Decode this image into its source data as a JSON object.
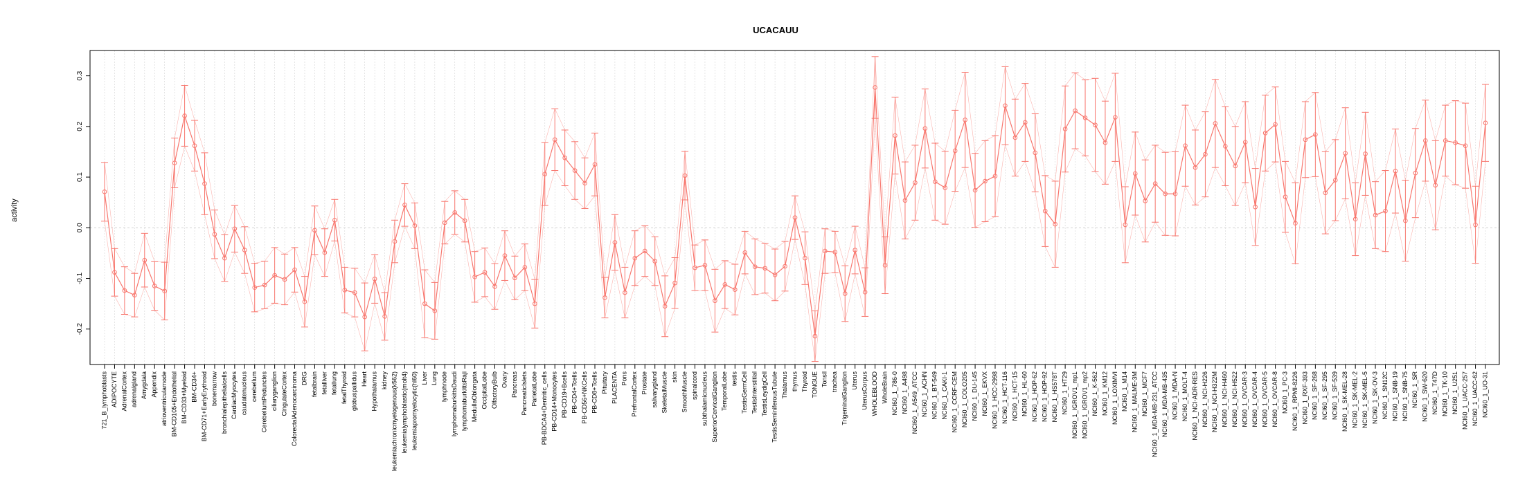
{
  "chart_data": {
    "type": "line",
    "title": "UCACAUU",
    "xlabel": "",
    "ylabel": "activity",
    "ylim": [
      -0.27,
      0.35
    ],
    "yticks": [
      -0.2,
      -0.1,
      0.0,
      0.1,
      0.2,
      0.3
    ],
    "ytick_labels": [
      "-0.2",
      "-0.1",
      "0.0",
      "0.1",
      "0.2",
      "0.3"
    ],
    "reference_line": 0,
    "grid": true,
    "error_bars": true,
    "colors": {
      "series": "#F8766D",
      "grid": "#D3D3D3",
      "axis": "#000000"
    },
    "categories": [
      "721_B_lymphoblasts",
      "ADIPOCYTE",
      "AdrenalCortex",
      "adrenalgland",
      "Amygdala",
      "Appendix",
      "atrioventricularnode",
      "BM-CD105+Endothelial",
      "BM-CD33+Myeloid",
      "BM-CD34+",
      "BM-CD71+EarlyErythroid",
      "bonemarrow",
      "bronchialepithelialcells",
      "CardiacMyocytes",
      "caudatenucleus",
      "cerebellum",
      "CerebellumPeduncles",
      "ciliaryganglion",
      "CingulateCortex",
      "ColorectalAdenocarcinoma",
      "DRG",
      "fetalbrain",
      "fetalliver",
      "fetallung",
      "fetalThyroid",
      "globuspallidus",
      "Heart",
      "Hypothalamus",
      "kidney",
      "leukemiachronicmyelogenous(k562)",
      "leukemialymphoblastic(molt4)",
      "leukemiapromyelocytic(hl60)",
      "Liver",
      "Lung",
      "lymphnode",
      "lymphomaburkittsDaudi",
      "lymphomaburkittsRaji",
      "MedullaOblongata",
      "OccipitalLobe",
      "OlfactoryBulb",
      "Ovary",
      "Pancreas",
      "PancreaticIslets",
      "ParietalLobe",
      "PB-BDCA4+Dentritic_cells",
      "PB-CD14+Monocytes",
      "PB-CD19+Bcells",
      "PB-CD4+Tcells",
      "PB-CD56+NKCells",
      "PB-CD8+Tcells",
      "Pituitary",
      "PLACENTA",
      "Pons",
      "PrefrontalCortex",
      "Prostate",
      "salivarygland",
      "SkeletalMuscle",
      "skin",
      "SmoothMuscle",
      "spinalcord",
      "subthalamicnucleus",
      "SuperiorCervicalGanglion",
      "TemporalLobe",
      "testis",
      "TestisGermCell",
      "TestisInterstitial",
      "TestisLeydigCell",
      "TestisSeminiferousTubule",
      "Thalamus",
      "thymus",
      "Thyroid",
      "TONGUE",
      "Tonsil",
      "trachea",
      "TrigeminalGanglion",
      "Uterus",
      "UterusCorpus",
      "WHOLEBLOOD",
      "WholeBrain",
      "NCI60_1_786-0",
      "NCI60_1_A498",
      "NCI60_1_A549_ATCC",
      "NCI60_1_ACHN",
      "NCI60_1_BT-549",
      "NCI60_1_CAKI-1",
      "NCI60_1_CCRF-CEM",
      "NCI60_1_COLO205",
      "NCI60_1_DU-145",
      "NCI60_1_EKVX",
      "NCI60_1_HCC-2998",
      "NCI60_1_HCT-116",
      "NCI60_1_HCT-15",
      "NCI60_1_HL-60",
      "NCI60_1_HOP-62",
      "NCI60_1_HOP-92",
      "NCI60_1_HS578T",
      "NCI60_1_HT29",
      "NCI60_1_IGROV1_mp1",
      "NCI60_1_IGROV1_mp2",
      "NCI60_1_K-562",
      "NCI60_1_KM12",
      "NCI60_1_LOXIMVI",
      "NCI60_1_M14",
      "NCI60_1_MALME-3M",
      "NCI60_1_MCF7",
      "NCI60_1_MDA-MB-231_ATCC",
      "NCI60_1_MDA-MB-435",
      "NCI60_1_MDA-N",
      "NCI60_1_MOLT-4",
      "NCI60_1_NCI-ADR-RES",
      "NCI60_1_NCI-H226",
      "NCI60_1_NCI-H322M",
      "NCI60_1_NCI-H460",
      "NCI60_1_NCI-H522",
      "NCI60_1_OVCAR-3",
      "NCI60_1_OVCAR-4",
      "NCI60_1_OVCAR-5",
      "NCI60_1_OVCAR-8",
      "NCI60_1_PC-3",
      "NCI60_1_RPMI-8226",
      "NCI60_1_RXF-393",
      "NCI60_1_SF-268",
      "NCI60_1_SF-295",
      "NCI60_1_SF-539",
      "NCI60_1_SK-MEL-28",
      "NCI60_1_SK-MEL-2",
      "NCI60_1_SK-MEL-5",
      "NCI60_1_SK-OV-3",
      "NCI60_1_SN12C",
      "NCI60_1_SNB-19",
      "NCI60_1_SNB-75",
      "NCI60_1_SR",
      "NCI60_1_SW-620",
      "NCI60_1_T47D",
      "NCI60_1_TK-10",
      "NCI60_1_U251",
      "NCI60_1_UACC-257",
      "NCI60_1_UACC-62",
      "NCI60_1_UO-31"
    ],
    "values": [
      0.071,
      -0.088,
      -0.124,
      -0.133,
      -0.064,
      -0.115,
      -0.125,
      0.128,
      0.221,
      0.162,
      0.087,
      -0.013,
      -0.06,
      -0.002,
      -0.044,
      -0.118,
      -0.113,
      -0.094,
      -0.102,
      -0.083,
      -0.146,
      -0.005,
      -0.049,
      0.015,
      -0.123,
      -0.128,
      -0.176,
      -0.101,
      -0.175,
      -0.027,
      0.045,
      0.004,
      -0.15,
      -0.164,
      0.01,
      0.03,
      0.014,
      -0.097,
      -0.088,
      -0.116,
      -0.055,
      -0.099,
      -0.078,
      -0.15,
      0.106,
      0.174,
      0.138,
      0.113,
      0.088,
      0.125,
      -0.138,
      -0.029,
      -0.128,
      -0.06,
      -0.046,
      -0.066,
      -0.155,
      -0.109,
      0.103,
      -0.079,
      -0.074,
      -0.144,
      -0.112,
      -0.122,
      -0.049,
      -0.077,
      -0.08,
      -0.093,
      -0.076,
      0.02,
      -0.06,
      -0.214,
      -0.046,
      -0.048,
      -0.13,
      -0.044,
      -0.127,
      0.277,
      -0.074,
      0.182,
      0.054,
      0.089,
      0.196,
      0.091,
      0.079,
      0.152,
      0.213,
      0.074,
      0.092,
      0.102,
      0.241,
      0.178,
      0.208,
      0.148,
      0.033,
      0.007,
      0.195,
      0.231,
      0.217,
      0.203,
      0.168,
      0.218,
      0.006,
      0.107,
      0.053,
      0.087,
      0.067,
      0.067,
      0.162,
      0.119,
      0.145,
      0.206,
      0.161,
      0.122,
      0.169,
      0.041,
      0.187,
      0.204,
      0.061,
      0.009,
      0.174,
      0.184,
      0.069,
      0.094,
      0.147,
      0.017,
      0.146,
      0.025,
      0.033,
      0.112,
      0.014,
      0.108,
      0.172,
      0.084,
      0.172,
      0.168,
      0.162,
      0.006,
      0.207
    ],
    "errors": [
      0.058,
      0.047,
      0.047,
      0.043,
      0.053,
      0.048,
      0.057,
      0.049,
      0.06,
      0.05,
      0.061,
      0.048,
      0.046,
      0.046,
      0.046,
      0.048,
      0.047,
      0.055,
      0.05,
      0.044,
      0.05,
      0.048,
      0.047,
      0.041,
      0.045,
      0.048,
      0.067,
      0.048,
      0.047,
      0.042,
      0.042,
      0.045,
      0.067,
      0.056,
      0.042,
      0.043,
      0.042,
      0.05,
      0.048,
      0.045,
      0.049,
      0.043,
      0.046,
      0.048,
      0.062,
      0.061,
      0.055,
      0.057,
      0.05,
      0.062,
      0.04,
      0.055,
      0.05,
      0.054,
      0.05,
      0.048,
      0.06,
      0.05,
      0.048,
      0.045,
      0.05,
      0.062,
      0.047,
      0.05,
      0.042,
      0.055,
      0.049,
      0.051,
      0.049,
      0.043,
      0.052,
      0.05,
      0.044,
      0.041,
      0.055,
      0.047,
      0.048,
      0.061,
      0.056,
      0.076,
      0.076,
      0.074,
      0.078,
      0.076,
      0.072,
      0.08,
      0.094,
      0.073,
      0.08,
      0.08,
      0.077,
      0.076,
      0.077,
      0.077,
      0.07,
      0.085,
      0.085,
      0.075,
      0.075,
      0.092,
      0.082,
      0.087,
      0.075,
      0.082,
      0.081,
      0.076,
      0.082,
      0.083,
      0.08,
      0.074,
      0.084,
      0.087,
      0.078,
      0.078,
      0.08,
      0.076,
      0.075,
      0.074,
      0.07,
      0.08,
      0.075,
      0.083,
      0.081,
      0.08,
      0.09,
      0.072,
      0.082,
      0.066,
      0.08,
      0.083,
      0.08,
      0.088,
      0.08,
      0.088,
      0.07,
      0.083,
      0.084,
      0.076,
      0.076
    ]
  }
}
